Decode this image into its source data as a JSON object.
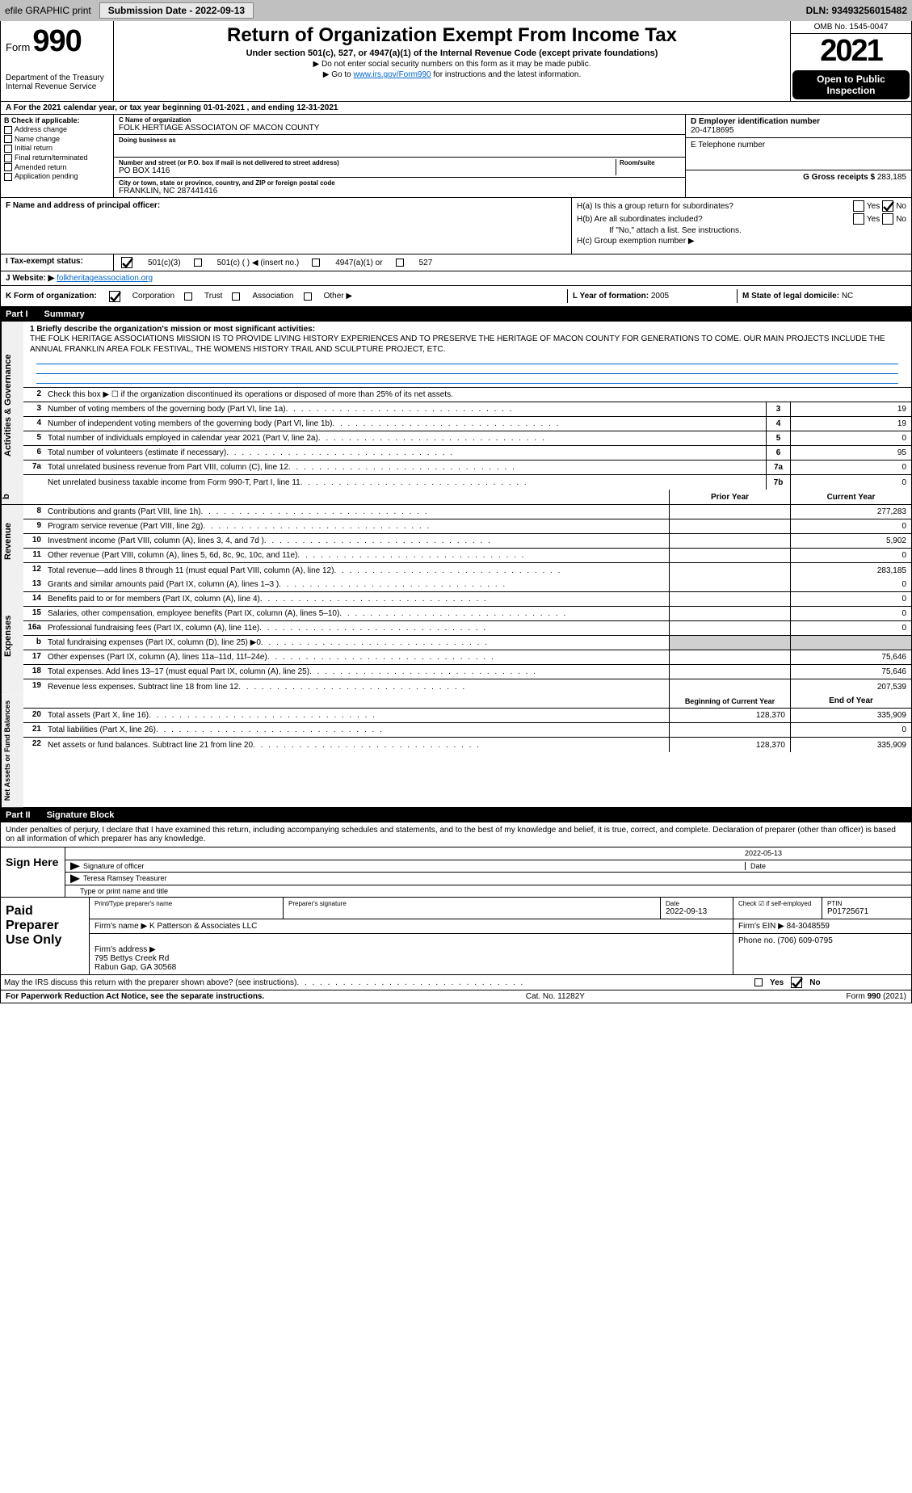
{
  "topbar": {
    "efile": "efile GRAPHIC print",
    "submission_label": "Submission Date - 2022-09-13",
    "dln_label": "DLN: 93493256015482"
  },
  "header": {
    "form_word": "Form",
    "form_no": "990",
    "title": "Return of Organization Exempt From Income Tax",
    "subtitle": "Under section 501(c), 527, or 4947(a)(1) of the Internal Revenue Code (except private foundations)",
    "note1": "▶ Do not enter social security numbers on this form as it may be made public.",
    "note2_pre": "▶ Go to ",
    "note2_link": "www.irs.gov/Form990",
    "note2_post": " for instructions and the latest information.",
    "dept": "Department of the Treasury\nInternal Revenue Service",
    "omb": "OMB No. 1545-0047",
    "year": "2021",
    "open": "Open to Public Inspection"
  },
  "row_a": "A For the 2021 calendar year, or tax year beginning 01-01-2021    , and ending 12-31-2021",
  "col_b": {
    "hdr": "B Check if applicable:",
    "items": [
      "Address change",
      "Name change",
      "Initial return",
      "Final return/terminated",
      "Amended return",
      "Application pending"
    ]
  },
  "col_c": {
    "name_label": "C Name of organization",
    "name": "FOLK HERTIAGE ASSOCIATON OF MACON COUNTY",
    "dba_label": "Doing business as",
    "dba": "",
    "addr_label": "Number and street (or P.O. box if mail is not delivered to street address)",
    "addr": "PO BOX 1416",
    "room_label": "Room/suite",
    "city_label": "City or town, state or province, country, and ZIP or foreign postal code",
    "city": "FRANKLIN, NC  287441416"
  },
  "col_d": {
    "ein_label": "D Employer identification number",
    "ein": "20-4718695",
    "phone_label": "E Telephone number",
    "phone": "",
    "gross_label": "G Gross receipts $",
    "gross": "283,185"
  },
  "col_f": {
    "label": "F  Name and address of principal officer:",
    "val": ""
  },
  "col_h": {
    "a_label": "H(a)  Is this a group return for subordinates?",
    "b_label": "H(b)  Are all subordinates included?",
    "b_note": "If \"No,\" attach a list. See instructions.",
    "c_label": "H(c)  Group exemption number ▶",
    "yes": "Yes",
    "no": "No"
  },
  "row_i": {
    "label": "I  Tax-exempt status:",
    "o1": "501(c)(3)",
    "o2": "501(c) (   ) ◀ (insert no.)",
    "o3": "4947(a)(1) or",
    "o4": "527"
  },
  "row_j": {
    "label": "J  Website: ▶",
    "val": " folkheritageassociation.org"
  },
  "row_k": {
    "label": "K Form of organization:",
    "o1": "Corporation",
    "o2": "Trust",
    "o3": "Association",
    "o4": "Other ▶"
  },
  "col_l": {
    "label": "L Year of formation:",
    "val": "2005"
  },
  "col_m": {
    "label": "M State of legal domicile:",
    "val": "NC"
  },
  "part1": {
    "num": "Part I",
    "title": "Summary"
  },
  "summary": {
    "l1_label": "1  Briefly describe the organization's mission or most significant activities:",
    "l1_text": "THE FOLK HERITAGE ASSOCIATIONS MISSION IS TO PROVIDE LIVING HISTORY EXPERIENCES AND TO PRESERVE THE HERITAGE OF MACON COUNTY FOR GENERATIONS TO COME. OUR MAIN PROJECTS INCLUDE THE ANNUAL FRANKLIN AREA FOLK FESTIVAL, THE WOMENS HISTORY TRAIL AND SCULPTURE PROJECT, ETC.",
    "l2": "Check this box ▶ ☐  if the organization discontinued its operations or disposed of more than 25% of its net assets."
  },
  "lines_gov": [
    {
      "n": "3",
      "t": "Number of voting members of the governing body (Part VI, line 1a)",
      "box": "3",
      "v": "19"
    },
    {
      "n": "4",
      "t": "Number of independent voting members of the governing body (Part VI, line 1b)",
      "box": "4",
      "v": "19"
    },
    {
      "n": "5",
      "t": "Total number of individuals employed in calendar year 2021 (Part V, line 2a)",
      "box": "5",
      "v": "0"
    },
    {
      "n": "6",
      "t": "Total number of volunteers (estimate if necessary)",
      "box": "6",
      "v": "95"
    },
    {
      "n": "7a",
      "t": "Total unrelated business revenue from Part VIII, column (C), line 12",
      "box": "7a",
      "v": "0"
    },
    {
      "n": "",
      "t": "Net unrelated business taxable income from Form 990-T, Part I, line 11",
      "box": "7b",
      "v": "0"
    }
  ],
  "col_hdrs": {
    "prior": "Prior Year",
    "current": "Current Year"
  },
  "lines_rev": [
    {
      "n": "8",
      "t": "Contributions and grants (Part VIII, line 1h)",
      "p": "",
      "c": "277,283"
    },
    {
      "n": "9",
      "t": "Program service revenue (Part VIII, line 2g)",
      "p": "",
      "c": "0"
    },
    {
      "n": "10",
      "t": "Investment income (Part VIII, column (A), lines 3, 4, and 7d )",
      "p": "",
      "c": "5,902"
    },
    {
      "n": "11",
      "t": "Other revenue (Part VIII, column (A), lines 5, 6d, 8c, 9c, 10c, and 11e)",
      "p": "",
      "c": "0"
    },
    {
      "n": "12",
      "t": "Total revenue—add lines 8 through 11 (must equal Part VIII, column (A), line 12)",
      "p": "",
      "c": "283,185"
    }
  ],
  "lines_exp": [
    {
      "n": "13",
      "t": "Grants and similar amounts paid (Part IX, column (A), lines 1–3 )",
      "p": "",
      "c": "0"
    },
    {
      "n": "14",
      "t": "Benefits paid to or for members (Part IX, column (A), line 4)",
      "p": "",
      "c": "0"
    },
    {
      "n": "15",
      "t": "Salaries, other compensation, employee benefits (Part IX, column (A), lines 5–10)",
      "p": "",
      "c": "0"
    },
    {
      "n": "16a",
      "t": "Professional fundraising fees (Part IX, column (A), line 11e)",
      "p": "",
      "c": "0"
    },
    {
      "n": "b",
      "t": "Total fundraising expenses (Part IX, column (D), line 25) ▶0",
      "p": "shade",
      "c": "shade"
    },
    {
      "n": "17",
      "t": "Other expenses (Part IX, column (A), lines 11a–11d, 11f–24e)",
      "p": "",
      "c": "75,646"
    },
    {
      "n": "18",
      "t": "Total expenses. Add lines 13–17 (must equal Part IX, column (A), line 25)",
      "p": "",
      "c": "75,646"
    },
    {
      "n": "19",
      "t": "Revenue less expenses. Subtract line 18 from line 12",
      "p": "",
      "c": "207,539"
    }
  ],
  "col_hdrs2": {
    "begin": "Beginning of Current Year",
    "end": "End of Year"
  },
  "lines_net": [
    {
      "n": "20",
      "t": "Total assets (Part X, line 16)",
      "p": "128,370",
      "c": "335,909"
    },
    {
      "n": "21",
      "t": "Total liabilities (Part X, line 26)",
      "p": "",
      "c": "0"
    },
    {
      "n": "22",
      "t": "Net assets or fund balances. Subtract line 21 from line 20",
      "p": "128,370",
      "c": "335,909"
    }
  ],
  "side_tabs": {
    "gov": "Activities & Governance",
    "rev": "Revenue",
    "exp": "Expenses",
    "net": "Net Assets or Fund Balances"
  },
  "part2": {
    "num": "Part II",
    "title": "Signature Block"
  },
  "sig_decl": "Under penalties of perjury, I declare that I have examined this return, including accompanying schedules and statements, and to the best of my knowledge and belief, it is true, correct, and complete. Declaration of preparer (other than officer) is based on all information of which preparer has any knowledge.",
  "sign": {
    "side": "Sign Here",
    "sig_label": "Signature of officer",
    "date": "2022-05-13",
    "date_label": "Date",
    "name": "Teresa Ramsey  Treasurer",
    "name_label": "Type or print name and title"
  },
  "prep": {
    "side": "Paid Preparer Use Only",
    "name_label": "Print/Type preparer's name",
    "name": "",
    "sig_label": "Preparer's signature",
    "date_label": "Date",
    "date": "2022-09-13",
    "check_label": "Check ☑ if self-employed",
    "ptin_label": "PTIN",
    "ptin": "P01725671",
    "firm_name_label": "Firm's name    ▶",
    "firm_name": "K Patterson & Associates LLC",
    "firm_ein_label": "Firm's EIN ▶",
    "firm_ein": "84-3048559",
    "firm_addr_label": "Firm's address ▶",
    "firm_addr": "795 Bettys Creek Rd\nRabun Gap, GA  30568",
    "phone_label": "Phone no.",
    "phone": "(706) 609-0795"
  },
  "may_irs": "May the IRS discuss this return with the preparer shown above? (see instructions)",
  "footer": {
    "left": "For Paperwork Reduction Act Notice, see the separate instructions.",
    "mid": "Cat. No. 11282Y",
    "right": "Form 990 (2021)"
  },
  "colors": {
    "topbar_bg": "#c0c0c0",
    "link": "#0066cc",
    "shade": "#d0d0d0"
  }
}
